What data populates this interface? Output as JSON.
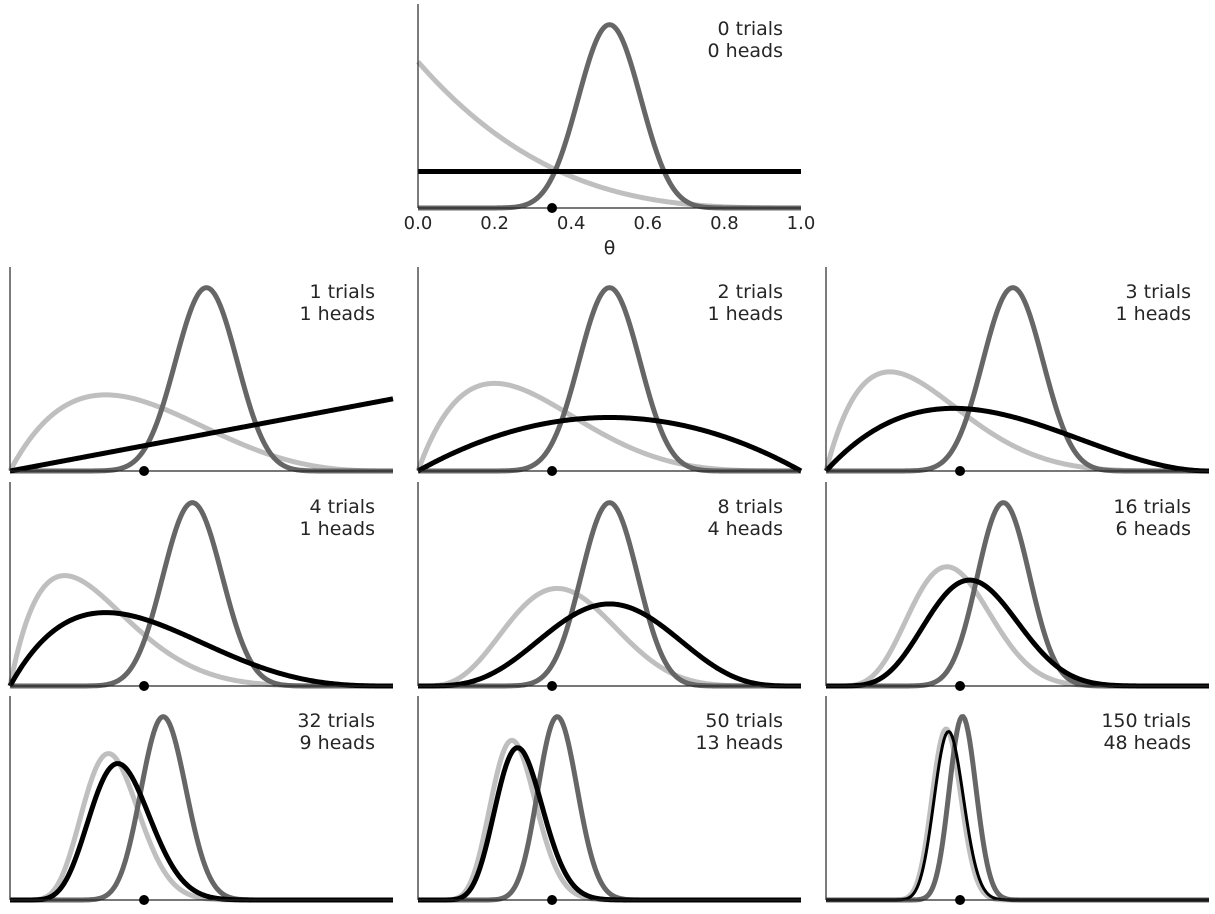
{
  "chart_data": {
    "type": "line",
    "xlabel": "θ",
    "xlim": [
      0,
      1
    ],
    "x_ticks": [
      "0.0",
      "0.2",
      "0.4",
      "0.6",
      "0.8",
      "1.0"
    ],
    "true_theta": 0.35,
    "grid": false,
    "priors": [
      {
        "alpha": 1,
        "beta": 1,
        "color": "#000000"
      },
      {
        "alpha": 20,
        "beta": 20,
        "color": "#666666"
      },
      {
        "alpha": 1,
        "beta": 4,
        "color": "#bfbfbf"
      }
    ],
    "panels": [
      {
        "trials": 0,
        "heads": 0,
        "label_trials": "0 trials",
        "label_heads": "0 heads"
      },
      {
        "trials": 1,
        "heads": 1,
        "label_trials": "1 trials",
        "label_heads": "1 heads"
      },
      {
        "trials": 2,
        "heads": 1,
        "label_trials": "2 trials",
        "label_heads": "1 heads"
      },
      {
        "trials": 3,
        "heads": 1,
        "label_trials": "3 trials",
        "label_heads": "1 heads"
      },
      {
        "trials": 4,
        "heads": 1,
        "label_trials": "4 trials",
        "label_heads": "1 heads"
      },
      {
        "trials": 8,
        "heads": 4,
        "label_trials": "8 trials",
        "label_heads": "4 heads"
      },
      {
        "trials": 16,
        "heads": 6,
        "label_trials": "16 trials",
        "label_heads": "6 heads"
      },
      {
        "trials": 32,
        "heads": 9,
        "label_trials": "32 trials",
        "label_heads": "9 heads"
      },
      {
        "trials": 50,
        "heads": 13,
        "label_trials": "50 trials",
        "label_heads": "13 heads"
      },
      {
        "trials": 150,
        "heads": 48,
        "label_trials": "150 trials",
        "label_heads": "48 heads"
      }
    ]
  }
}
